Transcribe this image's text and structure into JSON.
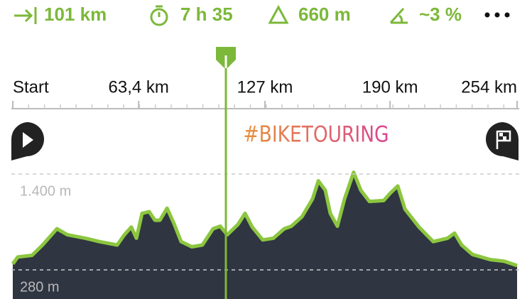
{
  "stats": [
    "101 km",
    "7 h 35",
    "660 m",
    "~3 %"
  ],
  "ruler": {
    "xlim": [
      0,
      254
    ],
    "ticks": [
      {
        "value": 0,
        "label": "Start"
      },
      {
        "value": 63.4,
        "label": "63,4 km"
      },
      {
        "value": 127,
        "label": "127 km"
      },
      {
        "value": 190,
        "label": "190 km"
      },
      {
        "value": 254,
        "label": "254 km"
      }
    ]
  },
  "hashtag": "#BIKETOURING",
  "profile": {
    "type": "area",
    "color": "#8cc63f",
    "xlim": [
      0,
      254
    ],
    "ylim": [
      280,
      1400
    ],
    "yticks": [
      {
        "value": 1400,
        "label": "1.400 m"
      },
      {
        "value": 280,
        "label": "280 m"
      }
    ],
    "x": [
      0,
      2.5,
      9.7,
      15,
      22.2,
      27.5,
      36.5,
      43.6,
      52.6,
      56.2,
      59.7,
      62.3,
      65.1,
      68.7,
      71.6,
      74.1,
      77.7,
      81.2,
      84.8,
      90.2,
      95.5,
      100.9,
      104.5,
      108,
      113.4,
      117,
      120.6,
      125.9,
      131.3,
      136.7,
      140.3,
      145.6,
      151,
      153.9,
      157.4,
      159.9,
      163.5,
      167.1,
      171.7,
      175.3,
      179.6,
      186.8,
      190.3,
      193.9,
      197.5,
      204.6,
      211.8,
      219,
      222.5,
      226.1,
      231.5,
      240.4,
      247.6,
      254
    ],
    "values": [
      350,
      430,
      450,
      570,
      760,
      690,
      650,
      610,
      570,
      690,
      780,
      650,
      940,
      960,
      860,
      860,
      1000,
      820,
      610,
      550,
      570,
      760,
      790,
      690,
      810,
      940,
      780,
      630,
      650,
      760,
      790,
      900,
      1110,
      1320,
      1210,
      940,
      790,
      1110,
      1420,
      1210,
      1080,
      1090,
      1180,
      1260,
      990,
      780,
      610,
      650,
      710,
      570,
      460,
      400,
      380,
      330
    ]
  }
}
